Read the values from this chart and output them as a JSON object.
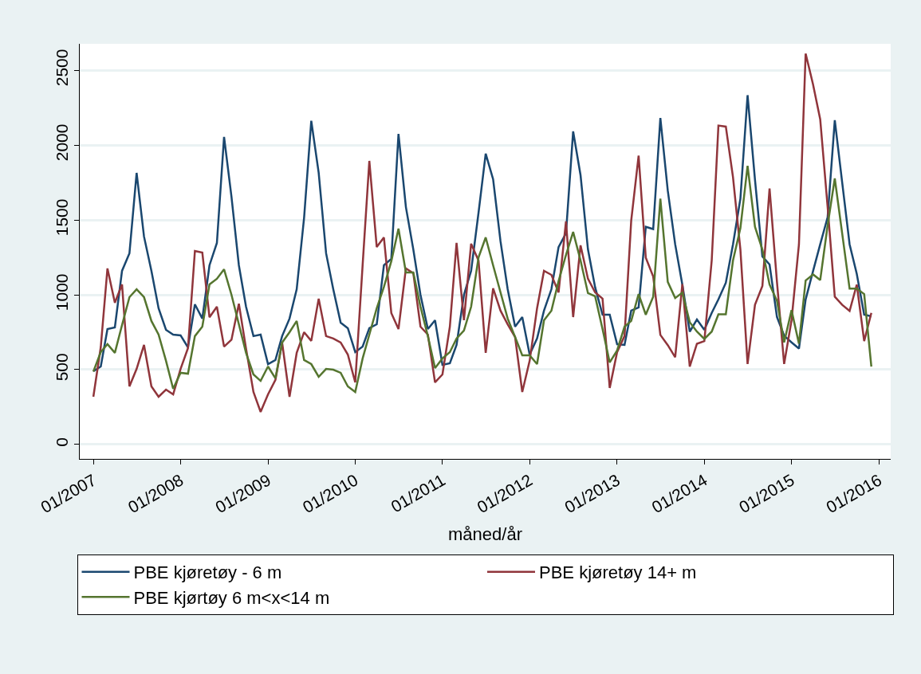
{
  "chart_data": {
    "type": "line",
    "xlabel": "måned/år",
    "x": [
      "2007-01",
      "2007-02",
      "2007-03",
      "2007-04",
      "2007-05",
      "2007-06",
      "2007-07",
      "2007-08",
      "2007-09",
      "2007-10",
      "2007-11",
      "2007-12",
      "2008-01",
      "2008-02",
      "2008-03",
      "2008-04",
      "2008-05",
      "2008-06",
      "2008-07",
      "2008-08",
      "2008-09",
      "2008-10",
      "2008-11",
      "2008-12",
      "2009-01",
      "2009-02",
      "2009-03",
      "2009-04",
      "2009-05",
      "2009-06",
      "2009-07",
      "2009-08",
      "2009-09",
      "2009-10",
      "2009-11",
      "2009-12",
      "2010-01",
      "2010-02",
      "2010-03",
      "2010-04",
      "2010-05",
      "2010-06",
      "2010-07",
      "2010-08",
      "2010-09",
      "2010-10",
      "2010-11",
      "2010-12",
      "2011-01",
      "2011-02",
      "2011-03",
      "2011-04",
      "2011-05",
      "2011-06",
      "2011-07",
      "2011-08",
      "2011-09",
      "2011-10",
      "2011-11",
      "2011-12",
      "2012-01",
      "2012-02",
      "2012-03",
      "2012-04",
      "2012-05",
      "2012-06",
      "2012-07",
      "2012-08",
      "2012-09",
      "2012-10",
      "2012-11",
      "2012-12",
      "2013-01",
      "2013-02",
      "2013-03",
      "2013-04",
      "2013-05",
      "2013-06",
      "2013-07",
      "2013-08",
      "2013-09",
      "2013-10",
      "2013-11",
      "2013-12",
      "2014-01",
      "2014-02",
      "2014-03",
      "2014-04",
      "2014-05",
      "2014-06",
      "2014-07",
      "2014-08",
      "2014-09",
      "2014-10",
      "2014-11",
      "2014-12",
      "2015-01",
      "2015-02",
      "2015-03",
      "2015-04",
      "2015-05",
      "2015-06",
      "2015-07",
      "2015-08",
      "2015-09",
      "2015-10",
      "2015-11",
      "2015-12"
    ],
    "series": [
      {
        "name": "PBE kjøretøy - 6 m",
        "color": "#1a476f",
        "values": [
          489,
          521,
          771,
          782,
          1160,
          1277,
          1814,
          1389,
          1160,
          910,
          766,
          734,
          729,
          649,
          936,
          841,
          1197,
          1346,
          2054,
          1655,
          1197,
          920,
          724,
          734,
          537,
          564,
          724,
          841,
          1037,
          1516,
          2162,
          1815,
          1277,
          1037,
          814,
          777,
          617,
          654,
          777,
          803,
          1197,
          1240,
          2074,
          1586,
          1303,
          1000,
          771,
          830,
          532,
          543,
          665,
          1000,
          1160,
          1548,
          1942,
          1772,
          1357,
          1037,
          787,
          851,
          601,
          708,
          894,
          1037,
          1319,
          1410,
          2091,
          1798,
          1303,
          1050,
          867,
          867,
          670,
          665,
          894,
          915,
          1454,
          1439,
          2181,
          1696,
          1337,
          1068,
          754,
          835,
          766,
          879,
          969,
          1080,
          1337,
          1642,
          2333,
          1768,
          1256,
          1202,
          852,
          727,
          682,
          641,
          969,
          1158,
          1337,
          1517,
          2166,
          1750,
          1337,
          1140,
          867,
          856
        ]
      },
      {
        "name": "PBE kjøretøy 14+ m",
        "color": "#90353b",
        "values": [
          319,
          650,
          1176,
          947,
          1069,
          388,
          505,
          665,
          388,
          319,
          367,
          335,
          505,
          644,
          1293,
          1282,
          850,
          920,
          654,
          700,
          940,
          640,
          351,
          218,
          335,
          432,
          681,
          319,
          612,
          750,
          692,
          974,
          724,
          708,
          681,
          601,
          415,
          1200,
          1894,
          1319,
          1383,
          878,
          771,
          1176,
          1144,
          787,
          734,
          415,
          468,
          787,
          1346,
          830,
          1341,
          1229,
          612,
          1043,
          894,
          803,
          718,
          351,
          559,
          910,
          1160,
          1133,
          1016,
          1490,
          851,
          1330,
          1107,
          1016,
          974,
          378,
          617,
          724,
          1495,
          1929,
          1247,
          1122,
          732,
          664,
          583,
          1071,
          520,
          673,
          691,
          1230,
          2130,
          2123,
          1786,
          1301,
          538,
          933,
          1059,
          1710,
          1086,
          538,
          830,
          1337,
          2611,
          2405,
          2172,
          1588,
          987,
          933,
          892,
          1068,
          691,
          879
        ]
      },
      {
        "name": "PBE kjørtøy 6 m<x<14 m",
        "color": "#55752f",
        "values": [
          487,
          617,
          670,
          612,
          798,
          984,
          1037,
          984,
          825,
          734,
          559,
          372,
          479,
          473,
          724,
          787,
          1069,
          1107,
          1170,
          1000,
          803,
          612,
          468,
          425,
          521,
          442,
          681,
          750,
          825,
          564,
          537,
          452,
          505,
          500,
          479,
          388,
          351,
          575,
          734,
          910,
          1053,
          1224,
          1442,
          1149,
          1149,
          920,
          724,
          511,
          575,
          617,
          708,
          761,
          920,
          1250,
          1383,
          1197,
          1016,
          841,
          718,
          596,
          596,
          537,
          830,
          894,
          1091,
          1266,
          1420,
          1229,
          1011,
          990,
          771,
          548,
          628,
          787,
          825,
          1005,
          867,
          987,
          1642,
          1086,
          978,
          1014,
          817,
          754,
          705,
          754,
          870,
          870,
          1229,
          1445,
          1861,
          1454,
          1301,
          1068,
          960,
          682,
          897,
          673,
          1095,
          1136,
          1098,
          1463,
          1777,
          1409,
          1041,
          1041,
          1005,
          520
        ]
      }
    ],
    "xlim": [
      "2006-11-05",
      "2016-02-20"
    ],
    "xticks": [
      {
        "value": "2007-01",
        "label": "01/2007"
      },
      {
        "value": "2008-01",
        "label": "01/2008"
      },
      {
        "value": "2009-01",
        "label": "01/2009"
      },
      {
        "value": "2010-01",
        "label": "01/2010"
      },
      {
        "value": "2011-01",
        "label": "01/2011"
      },
      {
        "value": "2012-01",
        "label": "01/2012"
      },
      {
        "value": "2013-01",
        "label": "01/2013"
      },
      {
        "value": "2014-01",
        "label": "01/2014"
      },
      {
        "value": "2015-01",
        "label": "01/2015"
      },
      {
        "value": "2016-01",
        "label": "01/2016"
      }
    ],
    "ylim": [
      -96,
      2676
    ],
    "yticks": [
      0,
      500,
      1000,
      1500,
      2000,
      2500
    ],
    "grid": "y",
    "legend": "bottom",
    "marker": "none",
    "line_style": "solid"
  }
}
